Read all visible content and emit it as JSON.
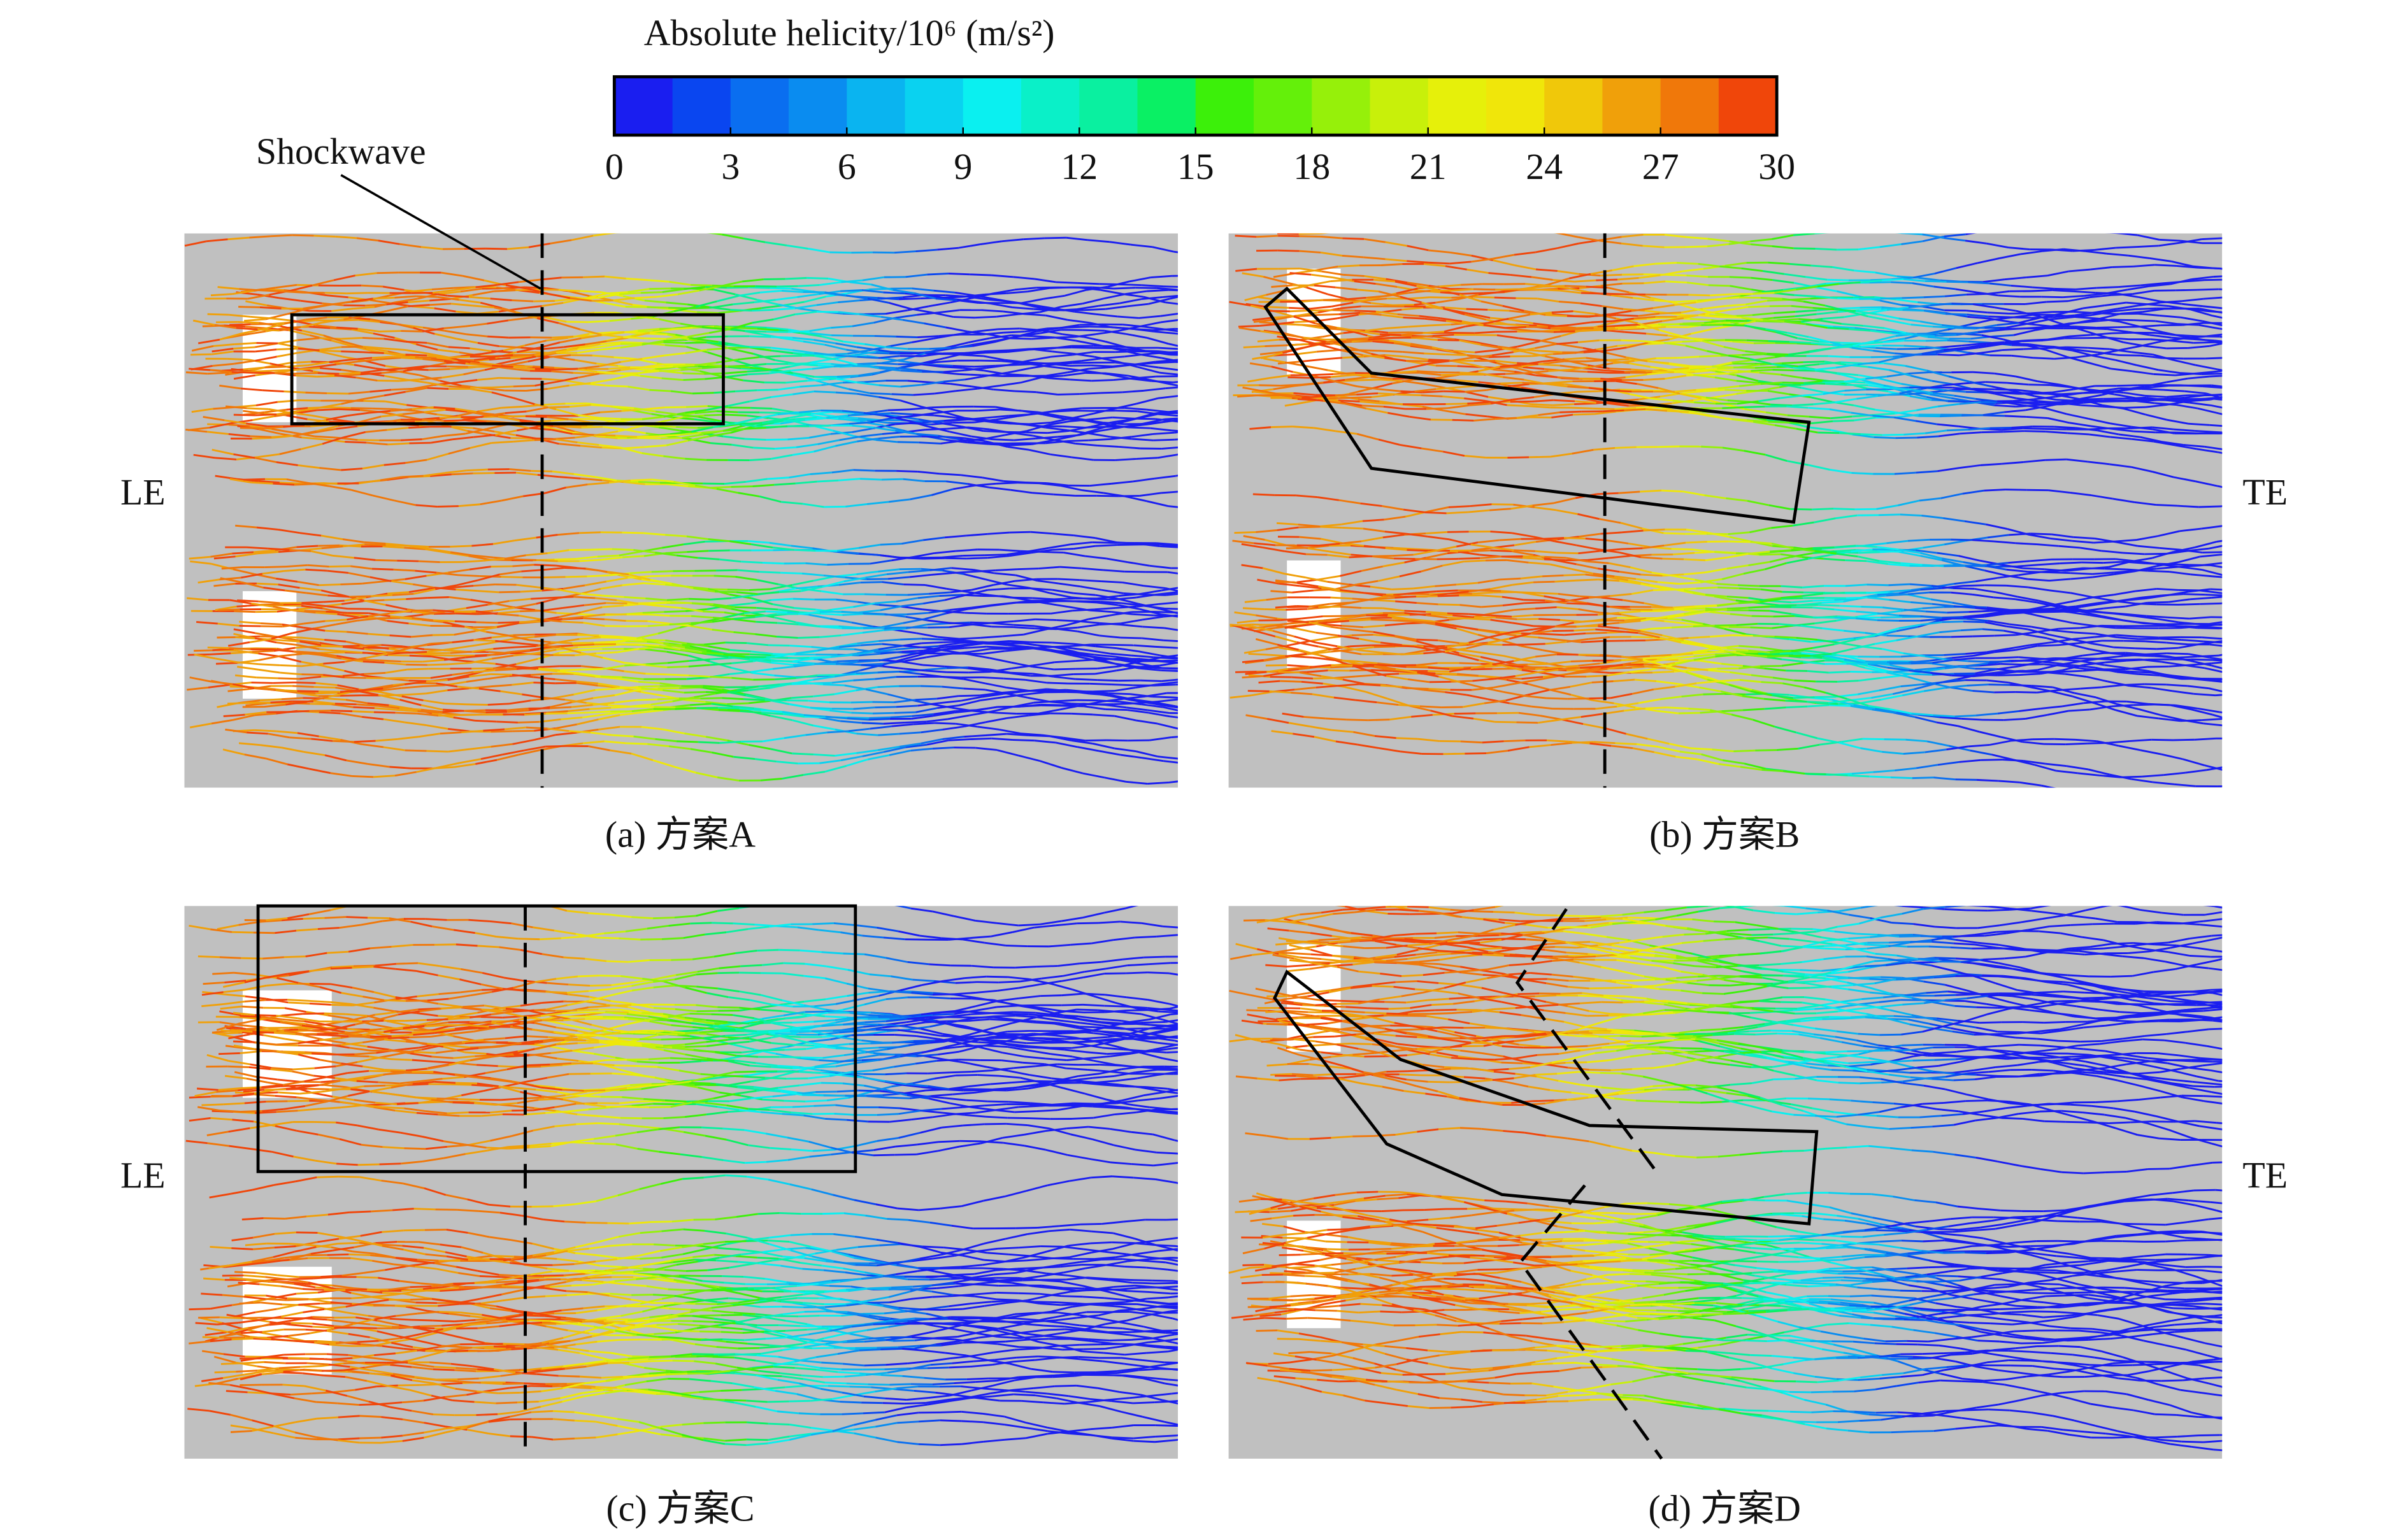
{
  "colorbar": {
    "title": "Absolute helicity/10⁶ (m/s²)",
    "range": [
      0,
      30
    ],
    "ticks": [
      0,
      3,
      6,
      9,
      12,
      15,
      18,
      21,
      24,
      27,
      30
    ],
    "colors": [
      "#1a1ef0",
      "#0a46f0",
      "#0a6ef0",
      "#0a8cf0",
      "#0ab4f0",
      "#0ad2f0",
      "#0af0f0",
      "#0af0c8",
      "#0af0a0",
      "#0af064",
      "#3cf00a",
      "#64f00a",
      "#96f00a",
      "#c8f00a",
      "#e6f00a",
      "#f0e60a",
      "#f0c80a",
      "#f0a00a",
      "#f0780a",
      "#f0460a"
    ]
  },
  "annotation": "Shockwave",
  "labels": {
    "left": "LE",
    "right": "TE"
  },
  "panels": [
    {
      "caption": "(a) 方案A"
    },
    {
      "caption": "(b) 方案B"
    },
    {
      "caption": "(c) 方案C"
    },
    {
      "caption": "(d) 方案D"
    }
  ]
}
